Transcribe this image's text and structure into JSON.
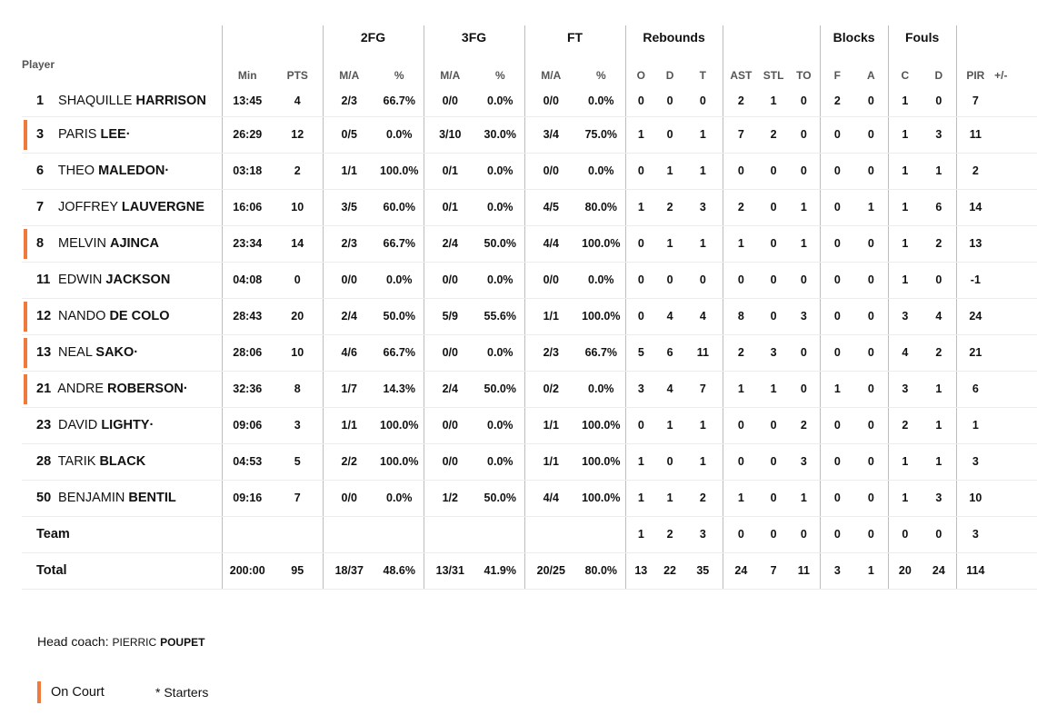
{
  "groups": {
    "fg2": "2FG",
    "fg3": "3FG",
    "ft": "FT",
    "rebounds": "Rebounds",
    "blocks": "Blocks",
    "fouls": "Fouls"
  },
  "headers": {
    "player": "Player",
    "min": "Min",
    "pts": "PTS",
    "fg2_ma": "M/A",
    "fg2_pct": "%",
    "fg3_ma": "M/A",
    "fg3_pct": "%",
    "ft_ma": "M/A",
    "ft_pct": "%",
    "reb_o": "O",
    "reb_d": "D",
    "reb_t": "T",
    "ast": "AST",
    "stl": "STL",
    "to": "TO",
    "blk_f": "F",
    "blk_a": "A",
    "foul_c": "C",
    "foul_d": "D",
    "pir": "PIR",
    "pm": "+/-"
  },
  "players": [
    {
      "num": "1",
      "first": "SHAQUILLE",
      "last": "HARRISON",
      "on_court": false,
      "min": "13:45",
      "pts": "4",
      "fg2_ma": "2/3",
      "fg2_pct": "66.7%",
      "fg3_ma": "0/0",
      "fg3_pct": "0.0%",
      "ft_ma": "0/0",
      "ft_pct": "0.0%",
      "reb_o": "0",
      "reb_d": "0",
      "reb_t": "0",
      "ast": "2",
      "stl": "1",
      "to": "0",
      "blk_f": "2",
      "blk_a": "0",
      "foul_c": "1",
      "foul_d": "0",
      "pir": "7",
      "pm": ""
    },
    {
      "num": "3",
      "first": "PARIS",
      "last": "LEE·",
      "on_court": true,
      "min": "26:29",
      "pts": "12",
      "fg2_ma": "0/5",
      "fg2_pct": "0.0%",
      "fg3_ma": "3/10",
      "fg3_pct": "30.0%",
      "ft_ma": "3/4",
      "ft_pct": "75.0%",
      "reb_o": "1",
      "reb_d": "0",
      "reb_t": "1",
      "ast": "7",
      "stl": "2",
      "to": "0",
      "blk_f": "0",
      "blk_a": "0",
      "foul_c": "1",
      "foul_d": "3",
      "pir": "11",
      "pm": ""
    },
    {
      "num": "6",
      "first": "THEO",
      "last": "MALEDON·",
      "on_court": false,
      "min": "03:18",
      "pts": "2",
      "fg2_ma": "1/1",
      "fg2_pct": "100.0%",
      "fg3_ma": "0/1",
      "fg3_pct": "0.0%",
      "ft_ma": "0/0",
      "ft_pct": "0.0%",
      "reb_o": "0",
      "reb_d": "1",
      "reb_t": "1",
      "ast": "0",
      "stl": "0",
      "to": "0",
      "blk_f": "0",
      "blk_a": "0",
      "foul_c": "1",
      "foul_d": "1",
      "pir": "2",
      "pm": ""
    },
    {
      "num": "7",
      "first": "JOFFREY",
      "last": "LAUVERGNE",
      "on_court": false,
      "min": "16:06",
      "pts": "10",
      "fg2_ma": "3/5",
      "fg2_pct": "60.0%",
      "fg3_ma": "0/1",
      "fg3_pct": "0.0%",
      "ft_ma": "4/5",
      "ft_pct": "80.0%",
      "reb_o": "1",
      "reb_d": "2",
      "reb_t": "3",
      "ast": "2",
      "stl": "0",
      "to": "1",
      "blk_f": "0",
      "blk_a": "1",
      "foul_c": "1",
      "foul_d": "6",
      "pir": "14",
      "pm": ""
    },
    {
      "num": "8",
      "first": "MELVIN",
      "last": "AJINCA",
      "on_court": true,
      "min": "23:34",
      "pts": "14",
      "fg2_ma": "2/3",
      "fg2_pct": "66.7%",
      "fg3_ma": "2/4",
      "fg3_pct": "50.0%",
      "ft_ma": "4/4",
      "ft_pct": "100.0%",
      "reb_o": "0",
      "reb_d": "1",
      "reb_t": "1",
      "ast": "1",
      "stl": "0",
      "to": "1",
      "blk_f": "0",
      "blk_a": "0",
      "foul_c": "1",
      "foul_d": "2",
      "pir": "13",
      "pm": ""
    },
    {
      "num": "11",
      "first": "EDWIN",
      "last": "JACKSON",
      "on_court": false,
      "min": "04:08",
      "pts": "0",
      "fg2_ma": "0/0",
      "fg2_pct": "0.0%",
      "fg3_ma": "0/0",
      "fg3_pct": "0.0%",
      "ft_ma": "0/0",
      "ft_pct": "0.0%",
      "reb_o": "0",
      "reb_d": "0",
      "reb_t": "0",
      "ast": "0",
      "stl": "0",
      "to": "0",
      "blk_f": "0",
      "blk_a": "0",
      "foul_c": "1",
      "foul_d": "0",
      "pir": "-1",
      "pm": ""
    },
    {
      "num": "12",
      "first": "NANDO",
      "last": "DE COLO",
      "on_court": true,
      "min": "28:43",
      "pts": "20",
      "fg2_ma": "2/4",
      "fg2_pct": "50.0%",
      "fg3_ma": "5/9",
      "fg3_pct": "55.6%",
      "ft_ma": "1/1",
      "ft_pct": "100.0%",
      "reb_o": "0",
      "reb_d": "4",
      "reb_t": "4",
      "ast": "8",
      "stl": "0",
      "to": "3",
      "blk_f": "0",
      "blk_a": "0",
      "foul_c": "3",
      "foul_d": "4",
      "pir": "24",
      "pm": ""
    },
    {
      "num": "13",
      "first": "NEAL",
      "last": "SAKO·",
      "on_court": true,
      "min": "28:06",
      "pts": "10",
      "fg2_ma": "4/6",
      "fg2_pct": "66.7%",
      "fg3_ma": "0/0",
      "fg3_pct": "0.0%",
      "ft_ma": "2/3",
      "ft_pct": "66.7%",
      "reb_o": "5",
      "reb_d": "6",
      "reb_t": "11",
      "ast": "2",
      "stl": "3",
      "to": "0",
      "blk_f": "0",
      "blk_a": "0",
      "foul_c": "4",
      "foul_d": "2",
      "pir": "21",
      "pm": ""
    },
    {
      "num": "21",
      "first": "ANDRE",
      "last": "ROBERSON·",
      "on_court": true,
      "min": "32:36",
      "pts": "8",
      "fg2_ma": "1/7",
      "fg2_pct": "14.3%",
      "fg3_ma": "2/4",
      "fg3_pct": "50.0%",
      "ft_ma": "0/2",
      "ft_pct": "0.0%",
      "reb_o": "3",
      "reb_d": "4",
      "reb_t": "7",
      "ast": "1",
      "stl": "1",
      "to": "0",
      "blk_f": "1",
      "blk_a": "0",
      "foul_c": "3",
      "foul_d": "1",
      "pir": "6",
      "pm": ""
    },
    {
      "num": "23",
      "first": "DAVID",
      "last": "LIGHTY·",
      "on_court": false,
      "min": "09:06",
      "pts": "3",
      "fg2_ma": "1/1",
      "fg2_pct": "100.0%",
      "fg3_ma": "0/0",
      "fg3_pct": "0.0%",
      "ft_ma": "1/1",
      "ft_pct": "100.0%",
      "reb_o": "0",
      "reb_d": "1",
      "reb_t": "1",
      "ast": "0",
      "stl": "0",
      "to": "2",
      "blk_f": "0",
      "blk_a": "0",
      "foul_c": "2",
      "foul_d": "1",
      "pir": "1",
      "pm": ""
    },
    {
      "num": "28",
      "first": "TARIK",
      "last": "BLACK",
      "on_court": false,
      "min": "04:53",
      "pts": "5",
      "fg2_ma": "2/2",
      "fg2_pct": "100.0%",
      "fg3_ma": "0/0",
      "fg3_pct": "0.0%",
      "ft_ma": "1/1",
      "ft_pct": "100.0%",
      "reb_o": "1",
      "reb_d": "0",
      "reb_t": "1",
      "ast": "0",
      "stl": "0",
      "to": "3",
      "blk_f": "0",
      "blk_a": "0",
      "foul_c": "1",
      "foul_d": "1",
      "pir": "3",
      "pm": ""
    },
    {
      "num": "50",
      "first": "BENJAMIN",
      "last": "BENTIL",
      "on_court": false,
      "min": "09:16",
      "pts": "7",
      "fg2_ma": "0/0",
      "fg2_pct": "0.0%",
      "fg3_ma": "1/2",
      "fg3_pct": "50.0%",
      "ft_ma": "4/4",
      "ft_pct": "100.0%",
      "reb_o": "1",
      "reb_d": "1",
      "reb_t": "2",
      "ast": "1",
      "stl": "0",
      "to": "1",
      "blk_f": "0",
      "blk_a": "0",
      "foul_c": "1",
      "foul_d": "3",
      "pir": "10",
      "pm": ""
    }
  ],
  "team": {
    "label": "Team",
    "min": "",
    "pts": "",
    "fg2_ma": "",
    "fg2_pct": "",
    "fg3_ma": "",
    "fg3_pct": "",
    "ft_ma": "",
    "ft_pct": "",
    "reb_o": "1",
    "reb_d": "2",
    "reb_t": "3",
    "ast": "0",
    "stl": "0",
    "to": "0",
    "blk_f": "0",
    "blk_a": "0",
    "foul_c": "0",
    "foul_d": "0",
    "pir": "3",
    "pm": ""
  },
  "total": {
    "label": "Total",
    "min": "200:00",
    "pts": "95",
    "fg2_ma": "18/37",
    "fg2_pct": "48.6%",
    "fg3_ma": "13/31",
    "fg3_pct": "41.9%",
    "ft_ma": "20/25",
    "ft_pct": "80.0%",
    "reb_o": "13",
    "reb_d": "22",
    "reb_t": "35",
    "ast": "24",
    "stl": "7",
    "to": "11",
    "blk_f": "3",
    "blk_a": "1",
    "foul_c": "20",
    "foul_d": "24",
    "pir": "114",
    "pm": ""
  },
  "coach": {
    "label": "Head coach:",
    "first": "PIERRIC",
    "last": "POUPET"
  },
  "legend": {
    "on_court": "On Court",
    "starters": "* Starters"
  },
  "colors": {
    "on_court_accent": "#f07a3c"
  }
}
